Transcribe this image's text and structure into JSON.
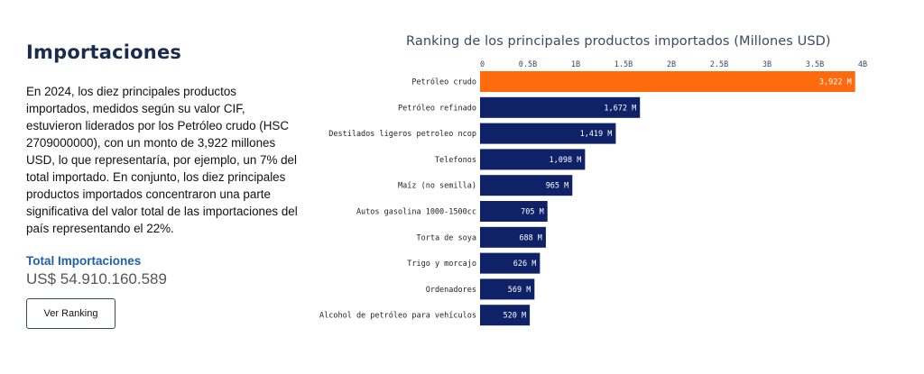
{
  "section": {
    "title": "Importaciones",
    "description": "En 2024, los diez principales productos importados, medidos según su valor CIF, estuvieron liderados por los Petróleo crudo (HSC 2709000000), con un monto de 3,922 millones USD, lo que representaría, por ejemplo, un 7% del total importado.  En conjunto, los diez principales productos importados concentraron una parte significativa del valor total de las importaciones del país representando el 22%.",
    "total_label": "Total Importaciones",
    "total_value": "US$ 54.910.160.589",
    "button_label": "Ver Ranking"
  },
  "colors": {
    "highlight": "#ff6a0d",
    "bar": "#0f2167",
    "title": "#1a2c4e",
    "accent": "#1f5fa8"
  },
  "chart_data": {
    "type": "bar",
    "orientation": "horizontal",
    "title": "Ranking de los principales productos importados (Millones USD)",
    "xlim": [
      0,
      4000
    ],
    "tick_values": [
      0,
      500,
      1000,
      1500,
      2000,
      2500,
      3000,
      3500,
      4000
    ],
    "tick_labels": [
      "0",
      "0.5B",
      "1B",
      "1.5B",
      "2B",
      "2.5B",
      "3B",
      "3.5B",
      "4B"
    ],
    "categories": [
      "Petróleo crudo",
      "Petróleo refinado",
      "Destilados ligeros petroleo ncop",
      "Telefonos",
      "Maíz (no semilla)",
      "Autos gasolina 1000-1500cc",
      "Torta de soya",
      "Trigo y morcajo",
      "Ordenadores",
      "Alcohol de petróleo para vehículos"
    ],
    "values": [
      3922,
      1672,
      1419,
      1098,
      965,
      705,
      688,
      626,
      569,
      520
    ],
    "value_labels": [
      "3,922 M",
      "1,672 M",
      "1,419 M",
      "1,098 M",
      "965 M",
      "705 M",
      "688 M",
      "626 M",
      "569 M",
      "520 M"
    ],
    "highlight_index": 0
  }
}
